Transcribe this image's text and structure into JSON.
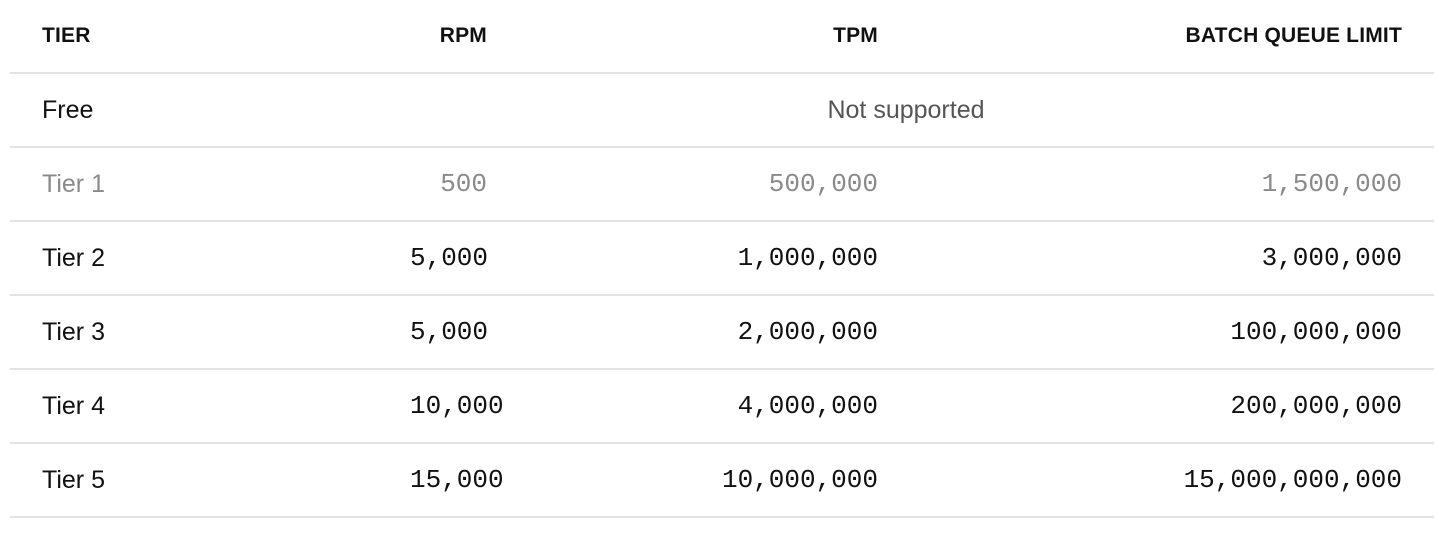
{
  "table": {
    "headers": {
      "tier": "TIER",
      "rpm": "RPM",
      "tpm": "TPM",
      "batch": "BATCH QUEUE LIMIT"
    },
    "free_row": {
      "tier": "Free",
      "note": "Not supported"
    },
    "rows": [
      {
        "tier": "Tier 1",
        "rpm": "500",
        "tpm": "500,000",
        "batch": "1,500,000",
        "muted": true
      },
      {
        "tier": "Tier 2",
        "rpm": "5,000",
        "tpm": "1,000,000",
        "batch": "3,000,000"
      },
      {
        "tier": "Tier 3",
        "rpm": "5,000",
        "tpm": "2,000,000",
        "batch": "100,000,000"
      },
      {
        "tier": "Tier 4",
        "rpm": "10,000",
        "tpm": "4,000,000",
        "batch": "200,000,000"
      },
      {
        "tier": "Tier 5",
        "rpm": "15,000",
        "tpm": "10,000,000",
        "batch": "15,000,000,000"
      }
    ],
    "colors": {
      "text": "#111111",
      "muted_text": "#8a8a8a",
      "note_text": "#555555",
      "divider": "#e3e3e3"
    }
  }
}
